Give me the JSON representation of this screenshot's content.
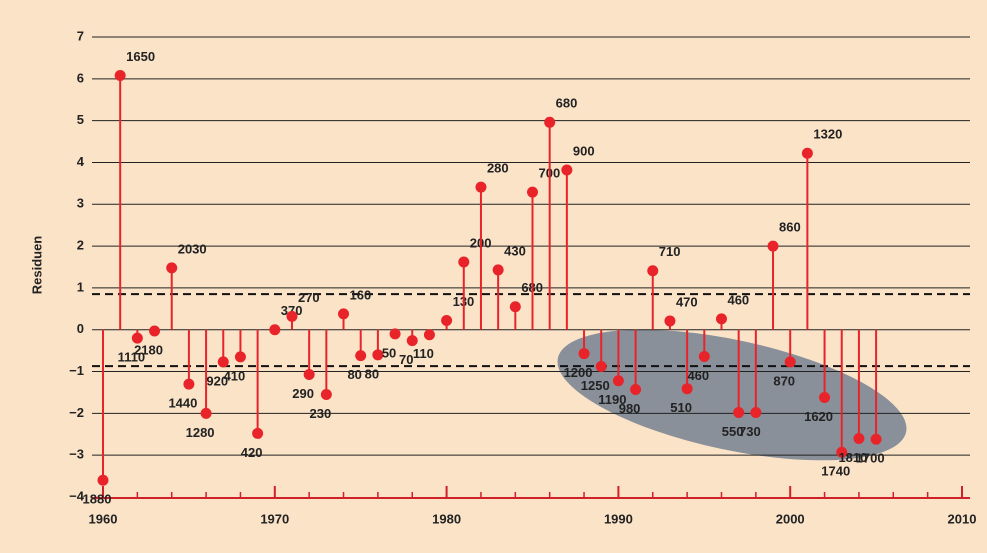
{
  "chart_data": {
    "type": "stem",
    "y_label": "Residuen",
    "x": [
      1960,
      1961,
      1962,
      1963,
      1964,
      1965,
      1966,
      1967,
      1968,
      1969,
      1970,
      1971,
      1972,
      1973,
      1974,
      1975,
      1976,
      1977,
      1978,
      1979,
      1980,
      1981,
      1982,
      1983,
      1984,
      1985,
      1986,
      1987,
      1988,
      1989,
      1990,
      1991,
      1992,
      1993,
      1994,
      1995,
      1996,
      1997,
      1998,
      1999,
      2000,
      2001,
      2002,
      2003,
      2004,
      2005
    ],
    "series": [
      {
        "color": "#e8242a",
        "values": [
          -3.6,
          6.08,
          -0.2,
          -0.03,
          1.48,
          -1.3,
          -2.0,
          -0.77,
          -0.65,
          -2.48,
          0.0,
          0.32,
          -1.07,
          -1.55,
          0.38,
          -0.62,
          -0.6,
          -0.1,
          -0.26,
          -0.12,
          0.22,
          1.62,
          3.41,
          1.43,
          0.55,
          3.29,
          4.96,
          3.82,
          -0.57,
          -0.88,
          -1.22,
          -1.43,
          1.41,
          0.21,
          -1.41,
          -0.64,
          0.26,
          -1.98,
          -1.98,
          2.0,
          -0.77,
          4.22,
          -1.62,
          -2.93,
          -2.6,
          -2.62
        ],
        "point_labels": [
          1880,
          1650,
          1110,
          2180,
          2030,
          1440,
          1280,
          920,
          410,
          420,
          370,
          270,
          290,
          230,
          160,
          80,
          80,
          50,
          70,
          110,
          130,
          200,
          280,
          430,
          680,
          700,
          680,
          900,
          1200,
          1250,
          1190,
          980,
          710,
          470,
          510,
          460,
          460,
          550,
          730,
          860,
          870,
          1320,
          1620,
          1740,
          1810,
          1700
        ]
      }
    ],
    "reference_lines": [
      0.85,
      -0.87
    ],
    "xlim": [
      1960,
      2010
    ],
    "xticks": [
      1960,
      1970,
      1980,
      1990,
      2000,
      2010
    ],
    "ylim": [
      -4,
      7
    ],
    "yticks": [
      {
        "value": -4,
        "label": "−4"
      },
      {
        "value": -3,
        "label": "−3"
      },
      {
        "value": -2,
        "label": "−2"
      },
      {
        "value": -1,
        "label": "−1"
      },
      0,
      1,
      2,
      3,
      4,
      5,
      6,
      7
    ],
    "grid": true
  }
}
